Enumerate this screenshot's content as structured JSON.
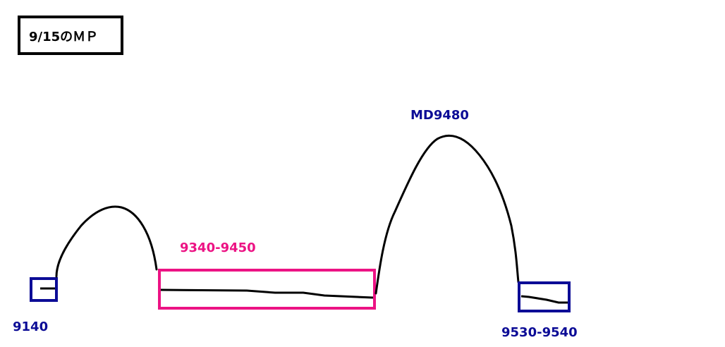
{
  "title": "9/15のＭＰ",
  "labels": {
    "left_box": "9140",
    "middle_box": "9340-9450",
    "peak": "MD9480",
    "right_box": "9530-9540"
  },
  "colors": {
    "navy": "#0c0c96",
    "pink": "#ec1384",
    "line": "#000000"
  }
}
